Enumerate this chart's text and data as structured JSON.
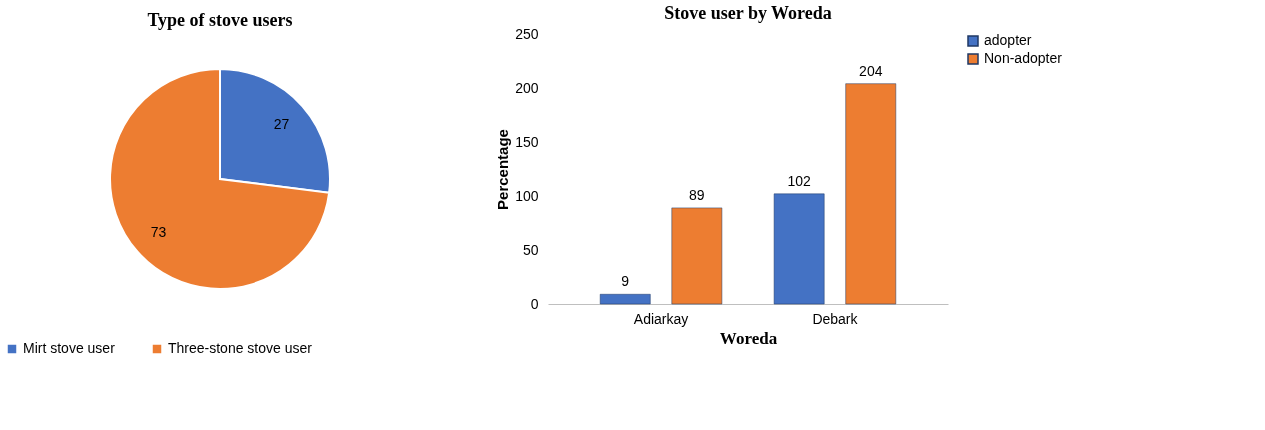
{
  "chart_data": [
    {
      "type": "pie",
      "title": "Type of stove users",
      "categories": [
        "Mirt  stove user",
        "Three-stone stove user"
      ],
      "values": [
        27,
        73
      ],
      "colors": [
        "#4472c4",
        "#ed7d31"
      ],
      "data_labels": true,
      "legend": "bottom"
    },
    {
      "type": "bar",
      "title": "Stove user by Woreda",
      "xlabel": "Woreda",
      "ylabel": "Percentage",
      "categories": [
        "Adiarkay",
        "Debark"
      ],
      "series": [
        {
          "name": "adopter",
          "color": "#4472c4",
          "values": [
            9,
            102
          ]
        },
        {
          "name": "Non-adopter",
          "color": "#ed7d31",
          "values": [
            89,
            204
          ]
        }
      ],
      "ylim": [
        0,
        250
      ],
      "yticks": [
        0,
        50,
        100,
        150,
        200,
        250
      ],
      "data_labels": true,
      "legend": "right"
    }
  ]
}
